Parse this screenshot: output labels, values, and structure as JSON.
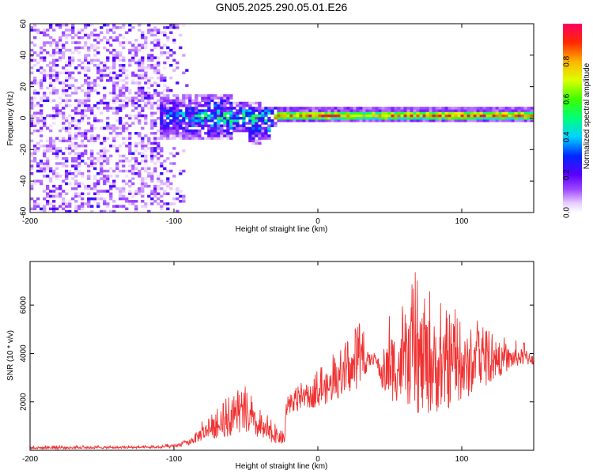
{
  "title": "GN05.2025.290.05.01.E26",
  "chart_data": [
    {
      "type": "heatmap",
      "name": "spectrogram",
      "xlabel": "Height of straight line (km)",
      "ylabel": "Frequency (Hz)",
      "xlim": [
        -200,
        150
      ],
      "ylim": [
        -60,
        60
      ],
      "xticks": [
        -200,
        -100,
        0,
        100
      ],
      "xtick_labels": [
        "-200",
        "-100",
        "0",
        "100"
      ],
      "yticks": [
        -60,
        -40,
        -20,
        0,
        20,
        40,
        60
      ],
      "ytick_labels": [
        "-60",
        "-40",
        "-20",
        "0",
        "20",
        "40",
        "60"
      ],
      "colorbar": {
        "label": "Normalized spectral amplitude",
        "range": [
          0,
          1
        ],
        "ticks": [
          0.0,
          0.2,
          0.4,
          0.6,
          0.8
        ],
        "tick_labels": [
          "0.0",
          "0.2",
          "0.4",
          "0.6",
          "0.8"
        ]
      },
      "features": {
        "noise_region_x": [
          -200,
          -90
        ],
        "transition_region_x": [
          -110,
          -30
        ],
        "signal_band_x": [
          -30,
          150
        ],
        "signal_band_center_hz": 1,
        "signal_band_halfwidth_hz": 3
      },
      "x_grid": [
        -200,
        -175,
        -150,
        -125,
        -100,
        -90,
        -80,
        -70,
        -60,
        -50,
        -40,
        -30,
        -20,
        -10,
        0,
        25,
        50,
        75,
        100,
        125,
        150
      ],
      "peak_amplitude": [
        0.25,
        0.25,
        0.25,
        0.25,
        0.3,
        0.4,
        0.45,
        0.45,
        0.5,
        0.45,
        0.45,
        0.85,
        0.75,
        0.75,
        0.85,
        0.7,
        0.75,
        0.75,
        0.8,
        0.8,
        0.75
      ]
    },
    {
      "type": "line",
      "name": "snr",
      "xlabel": "Height of straight line (km)",
      "ylabel": "SNR (10 * v/v)",
      "xlim": [
        -200,
        150
      ],
      "ylim": [
        0,
        7800
      ],
      "xticks": [
        -200,
        -100,
        0,
        100
      ],
      "xtick_labels": [
        "-200",
        "-100",
        "0",
        "100"
      ],
      "yticks": [
        2000,
        4000,
        6000
      ],
      "ytick_labels": [
        "2000",
        "4000",
        "6000"
      ],
      "color": "#f03232",
      "envelope": {
        "x": [
          -200,
          -110,
          -100,
          -90,
          -80,
          -70,
          -60,
          -50,
          -40,
          -30,
          -23,
          -22,
          -10,
          0,
          10,
          20,
          30,
          35,
          40,
          45,
          50,
          60,
          70,
          80,
          90,
          100,
          110,
          120,
          130,
          140,
          150
        ],
        "low": [
          50,
          80,
          100,
          200,
          400,
          500,
          600,
          700,
          400,
          300,
          200,
          1400,
          1700,
          1800,
          2000,
          2300,
          2600,
          3400,
          3600,
          2400,
          2000,
          2000,
          1400,
          1500,
          1700,
          2000,
          2400,
          2800,
          3200,
          3500,
          3500
        ],
        "high": [
          200,
          200,
          300,
          500,
          1300,
          1800,
          2400,
          2700,
          1700,
          1200,
          1000,
          2300,
          2900,
          3300,
          4000,
          4500,
          5500,
          4300,
          4100,
          4200,
          6200,
          6000,
          7800,
          7000,
          6000,
          5900,
          5500,
          5000,
          4700,
          4500,
          4400
        ]
      }
    }
  ]
}
